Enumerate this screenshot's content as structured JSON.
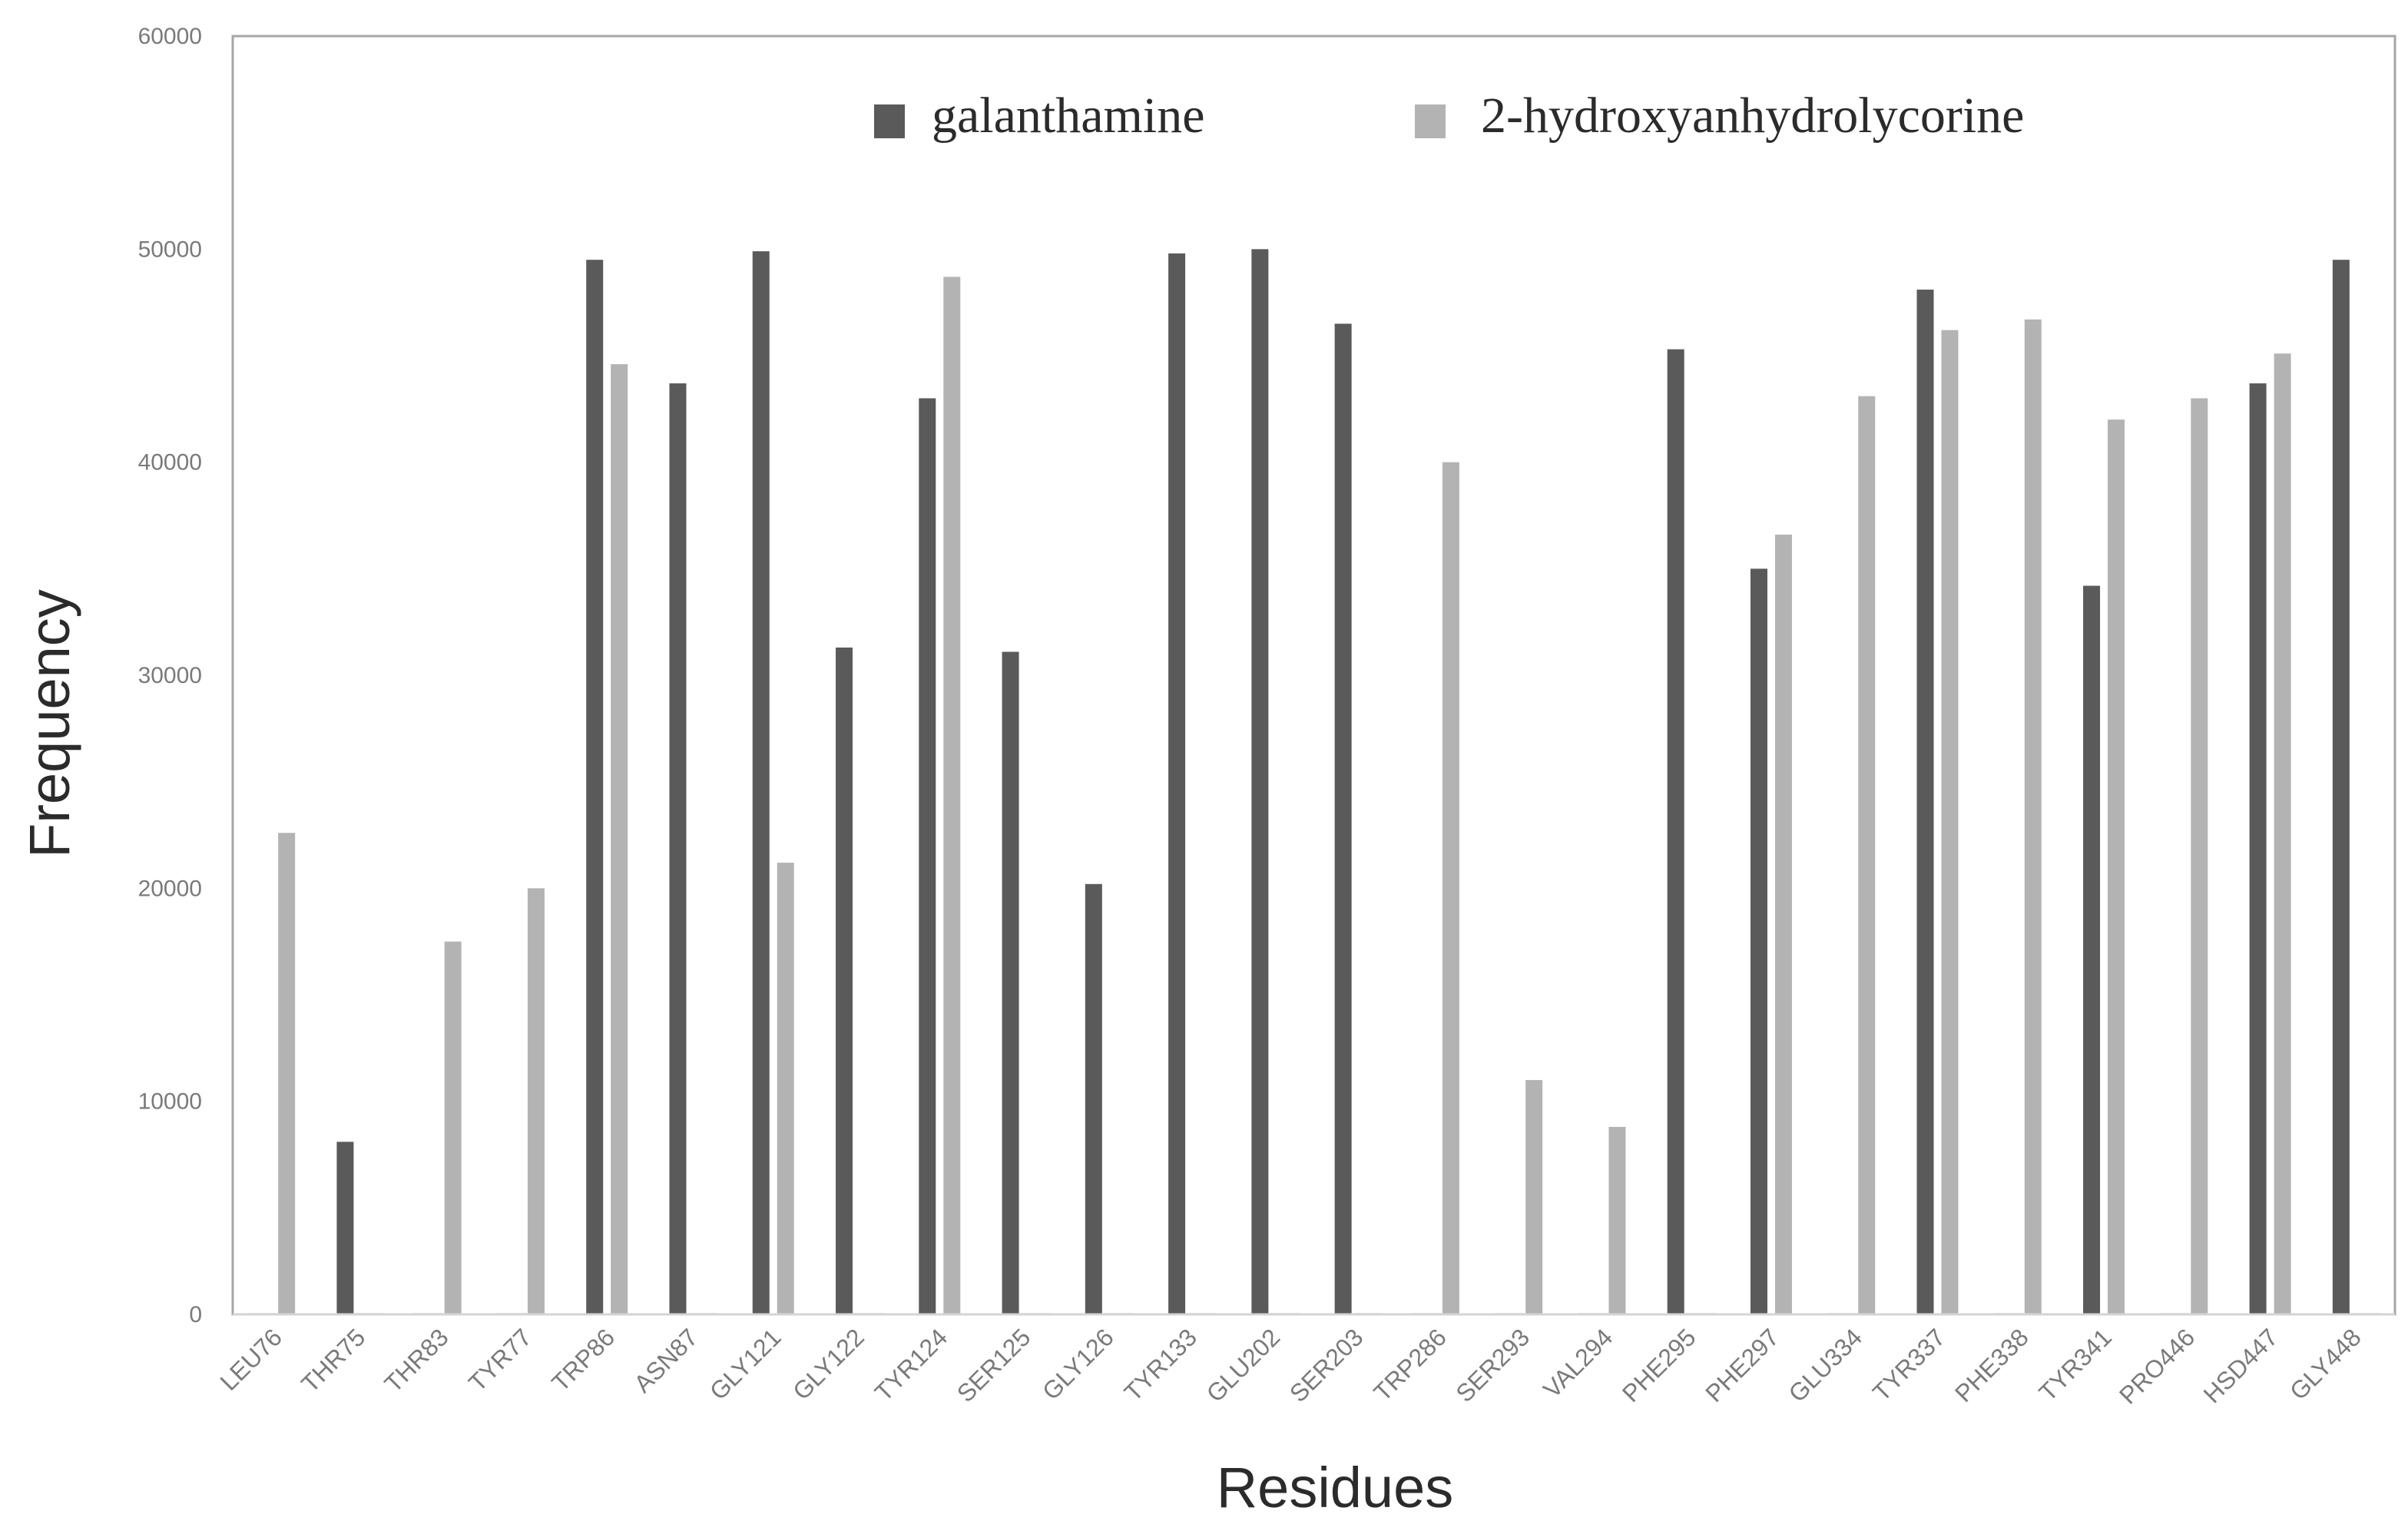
{
  "chart_data": {
    "type": "bar",
    "title": "",
    "xlabel": "Residues",
    "ylabel": "Frequency",
    "ylim": [
      0,
      60000
    ],
    "yticks": [
      "0",
      "10000",
      "20000",
      "30000",
      "40000",
      "50000",
      "60000"
    ],
    "legend_position": "top-center",
    "grid": false,
    "categories": [
      "LEU76",
      "THR75",
      "THR83",
      "TYR77",
      "TRP86",
      "ASN87",
      "GLY121",
      "GLY122",
      "TYR124",
      "SER125",
      "GLY126",
      "TYR133",
      "GLU202",
      "SER203",
      "TRP286",
      "SER293",
      "VAL294",
      "PHE295",
      "PHE297",
      "GLU334",
      "TYR337",
      "PHE338",
      "TYR341",
      "PRO446",
      "HSD447",
      "GLY448"
    ],
    "series": [
      {
        "name": "galanthamine",
        "color": "#5a5a5a",
        "values": [
          0,
          8100,
          0,
          0,
          49500,
          43700,
          49900,
          31300,
          43000,
          31100,
          20200,
          49800,
          50000,
          46500,
          0,
          0,
          0,
          45300,
          35000,
          0,
          48100,
          0,
          34200,
          0,
          43700,
          49500
        ]
      },
      {
        "name": "2-hydroxyanhydrolycorine",
        "color": "#b3b3b3",
        "values": [
          22600,
          0,
          17500,
          20000,
          44600,
          0,
          21200,
          0,
          48700,
          0,
          0,
          0,
          0,
          0,
          40000,
          11000,
          8800,
          0,
          36600,
          43100,
          46200,
          46700,
          42000,
          43000,
          45100,
          0
        ]
      }
    ]
  }
}
